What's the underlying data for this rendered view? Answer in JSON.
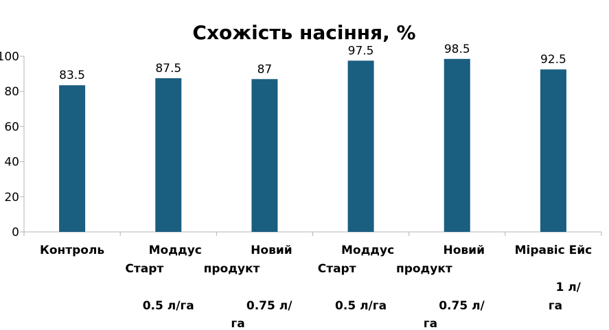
{
  "chart_data": {
    "type": "bar",
    "title": "Схожість насіння, %",
    "xlabel": "",
    "ylabel": "",
    "ylim": [
      0,
      100
    ],
    "yticks": [
      0,
      20,
      40,
      60,
      80,
      100
    ],
    "grid": false,
    "legend": "none",
    "bar_color": "#1a5e80",
    "categories": [
      {
        "name": [
          "Контроль"
        ],
        "dose": []
      },
      {
        "name": [
          "Моддус",
          "Старт"
        ],
        "dose": [
          "0.5 л/га"
        ]
      },
      {
        "name": [
          "Новий",
          "продукт"
        ],
        "dose": [
          "0.75 л/",
          "га"
        ]
      },
      {
        "name": [
          "Моддус",
          "Старт"
        ],
        "dose": [
          "0.5 л/га"
        ]
      },
      {
        "name": [
          "Новий",
          "продукт"
        ],
        "dose": [
          "0.75 л/",
          "га"
        ]
      },
      {
        "name": [
          "Міравіс Ейс"
        ],
        "dose": [
          "1 л/",
          "га"
        ]
      }
    ],
    "values": [
      83.5,
      87.5,
      87,
      97.5,
      98.5,
      92.5
    ],
    "value_labels": [
      "83.5",
      "87.5",
      "87",
      "97.5",
      "98.5",
      "92.5"
    ]
  }
}
